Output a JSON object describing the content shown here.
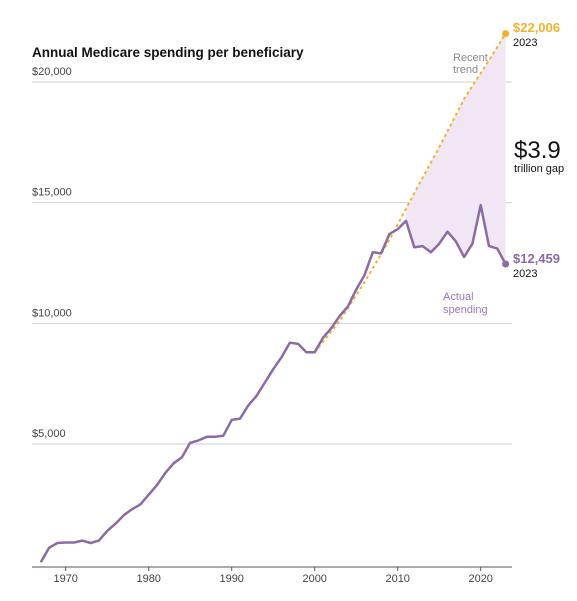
{
  "chart_data": {
    "type": "line",
    "title": "Annual Medicare spending per beneficiary",
    "xlabel": "",
    "ylabel": "",
    "xlim": [
      1966,
      2024
    ],
    "ylim": [
      0,
      22006
    ],
    "x_ticks": [
      "1970",
      "1980",
      "1990",
      "2000",
      "2010",
      "2020"
    ],
    "x_tick_values": [
      1970,
      1980,
      1990,
      2000,
      2010,
      2020
    ],
    "y_ticks": [
      "$5,000",
      "$10,000",
      "$15,000",
      "$20,000"
    ],
    "y_tick_values": [
      5000,
      10000,
      15000,
      20000
    ],
    "grid": "horizontal",
    "colors": {
      "actual": "#8b6aa6",
      "trend": "#f2b32a",
      "gap_fill": "#f1e6f4",
      "grid": "#cfcfcf"
    },
    "series": [
      {
        "key": "actual",
        "x": [
          1967,
          1968,
          1969,
          1970,
          1971,
          1972,
          1973,
          1974,
          1975,
          1976,
          1977,
          1978,
          1979,
          1980,
          1981,
          1982,
          1983,
          1984,
          1985,
          1986,
          1987,
          1988,
          1989,
          1990,
          1991,
          1992,
          1993,
          1994,
          1995,
          1996,
          1997,
          1998,
          1999,
          2000,
          2001,
          2002,
          2003,
          2004,
          2005,
          2006,
          2007,
          2008,
          2009,
          2010,
          2011,
          2012,
          2013,
          2014,
          2015,
          2016,
          2017,
          2018,
          2019,
          2020,
          2021,
          2022,
          2023
        ],
        "values": [
          100,
          700,
          900,
          920,
          920,
          1000,
          900,
          1000,
          1400,
          1700,
          2050,
          2300,
          2500,
          2900,
          3300,
          3800,
          4200,
          4450,
          5050,
          5150,
          5300,
          5300,
          5350,
          6000,
          6050,
          6600,
          7000,
          7550,
          8100,
          8600,
          9200,
          9150,
          8800,
          8800,
          9400,
          9800,
          10300,
          10700,
          11400,
          12000,
          12950,
          12900,
          13700,
          13900,
          14250,
          13150,
          13200,
          12950,
          13300,
          13800,
          13400,
          12750,
          13300,
          14900,
          13200,
          13100,
          12459
        ]
      },
      {
        "key": "trend",
        "x": [
          2000,
          2003,
          2006,
          2009,
          2012,
          2015,
          2018,
          2021,
          2023
        ],
        "values": [
          8800,
          10100,
          11700,
          13450,
          15400,
          17300,
          19300,
          20900,
          22006
        ]
      }
    ],
    "annotations": {
      "trend_end_value": "$22,006",
      "trend_end_year": "2023",
      "actual_end_value": "$12,459",
      "actual_end_year": "2023",
      "trend_label_line1": "Recent",
      "trend_label_line2": "trend",
      "actual_label_line1": "Actual",
      "actual_label_line2": "spending",
      "gap_value": "$3.9",
      "gap_label": "trillion gap"
    }
  }
}
